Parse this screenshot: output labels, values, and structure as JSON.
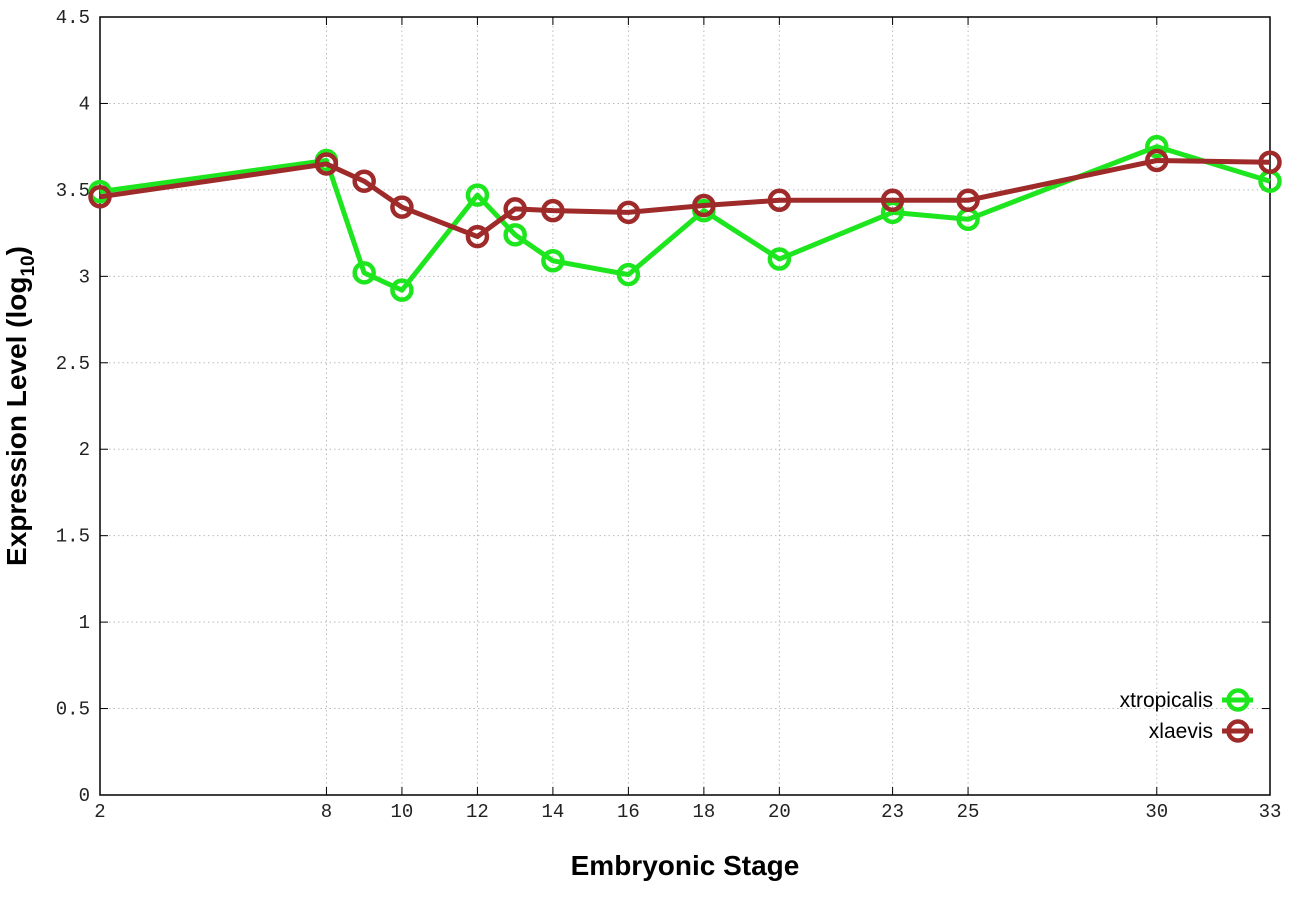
{
  "chart_data": {
    "type": "line",
    "title": "",
    "xlabel": "Embryonic Stage",
    "ylabel": {
      "prefix": "Expression Level (log",
      "sub": "10",
      "suffix": ")"
    },
    "x": [
      2,
      8,
      9,
      10,
      12,
      13,
      14,
      16,
      18,
      20,
      23,
      25,
      30,
      33
    ],
    "x_tick_labels": [
      "2",
      "8",
      "10",
      "12",
      "14",
      "16",
      "18",
      "20",
      "23",
      "25",
      "30",
      "33"
    ],
    "xlim": [
      2,
      33
    ],
    "ylim": [
      0,
      4.5
    ],
    "y_ticks": [
      "0",
      "0.5",
      "1",
      "1.5",
      "2",
      "2.5",
      "3",
      "3.5",
      "4",
      "4.5"
    ],
    "grid": true,
    "legend_position": "bottom-right",
    "series": [
      {
        "name": "xtropicalis",
        "color": "#1ee61e",
        "values": [
          3.49,
          3.67,
          3.02,
          2.92,
          3.47,
          3.24,
          3.09,
          3.01,
          3.38,
          3.1,
          3.37,
          3.33,
          3.75,
          3.55
        ]
      },
      {
        "name": "xlaevis",
        "color": "#9e2a2a",
        "values": [
          3.46,
          3.65,
          3.55,
          3.4,
          3.23,
          3.39,
          3.38,
          3.37,
          3.41,
          3.44,
          3.44,
          3.44,
          3.67,
          3.66
        ]
      }
    ]
  }
}
